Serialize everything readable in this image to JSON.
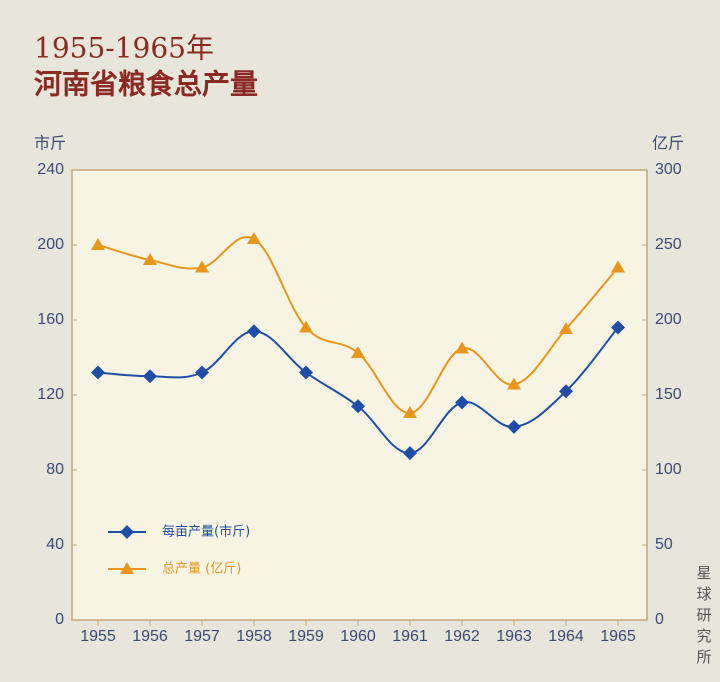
{
  "chart_data": {
    "type": "line",
    "title": "1955-1965年",
    "subtitle": "河南省粮食总产量",
    "y_label": "市斤",
    "y2_label": "亿斤",
    "watermark": "星球研究所",
    "categories": [
      "1955",
      "1956",
      "1957",
      "1958",
      "1959",
      "1960",
      "1961",
      "1962",
      "1963",
      "1964",
      "1965"
    ],
    "series": [
      {
        "name": "每亩产量(市斤)",
        "color": "#1f4ea6",
        "marker": "diamond",
        "values": [
          132,
          130,
          132,
          154,
          132,
          114,
          89,
          116,
          103,
          122,
          156
        ]
      },
      {
        "name": "总产量 (亿斤)",
        "color": "#e8961c",
        "marker": "triangle",
        "axis": "y2",
        "values": [
          250,
          240,
          235,
          254,
          195,
          178,
          138,
          181,
          157,
          194,
          235
        ]
      }
    ],
    "ylim": [
      0,
      240
    ],
    "yticks": [
      0,
      40,
      80,
      120,
      160,
      200,
      240
    ],
    "y2lim": [
      0,
      300
    ],
    "y2ticks": [
      0,
      50,
      100,
      150,
      200,
      250,
      300
    ],
    "legend": "lower left",
    "grid": false
  }
}
